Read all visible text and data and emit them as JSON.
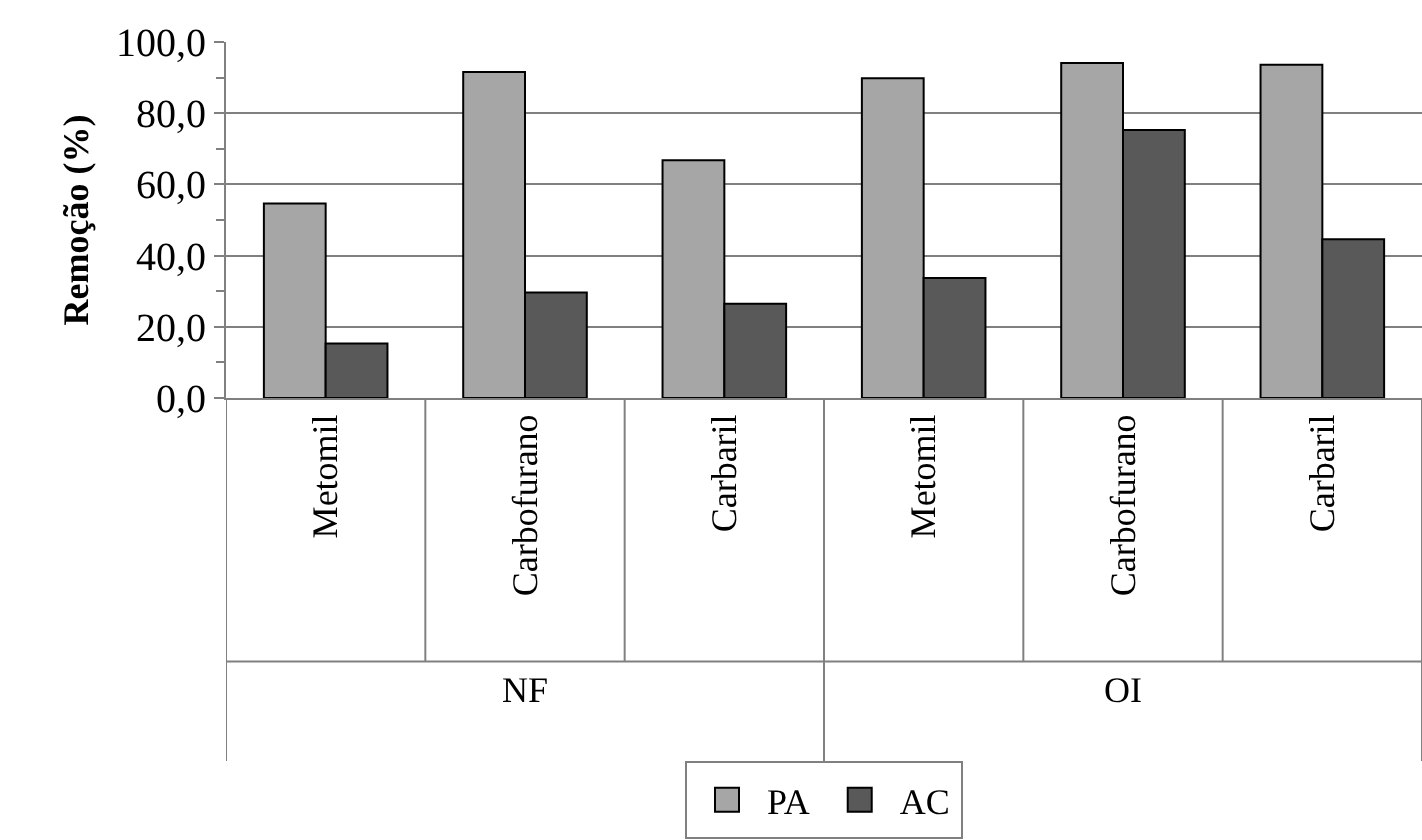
{
  "chart_data": {
    "type": "bar",
    "ylabel": "Remoção (%)",
    "categories": [
      "Metomil",
      "Carbofurano",
      "Carbaril",
      "Metomil",
      "Carbofurano",
      "Carbaril"
    ],
    "series": [
      {
        "name": "PA",
        "color": "#a6a6a6",
        "values": [
          54.6,
          91.6,
          66.8,
          89.8,
          94.1,
          93.6
        ]
      },
      {
        "name": "AC",
        "color": "#595959",
        "values": [
          15.3,
          29.6,
          26.5,
          33.7,
          75.3,
          44.6
        ]
      }
    ],
    "annotations": [
      "NF",
      "OI"
    ],
    "ylim": [
      0,
      100
    ],
    "yticks": [
      {
        "value": 0,
        "label": "0,0"
      },
      {
        "value": 20,
        "label": "20,0"
      },
      {
        "value": 40,
        "label": "40,0"
      },
      {
        "value": 60,
        "label": "60,0"
      },
      {
        "value": 80,
        "label": "80,0"
      },
      {
        "value": 100,
        "label": "100,0"
      }
    ],
    "grid": "y",
    "legend": "bottom"
  }
}
